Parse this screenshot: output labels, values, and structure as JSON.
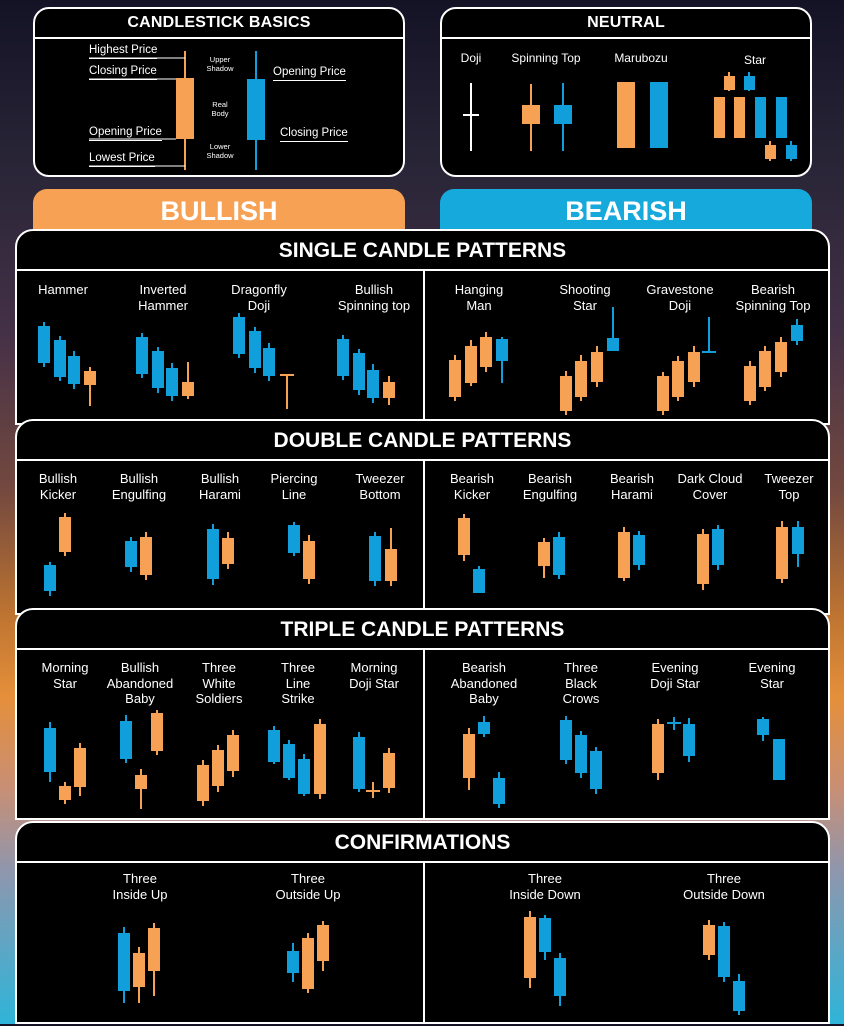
{
  "colors": {
    "bull": "#f7a154",
    "bear": "#119fdc",
    "background": "#000000",
    "border": "#ffffff"
  },
  "basics": {
    "title": "CANDLESTICK BASICS",
    "highest_price": "Highest Price",
    "closing_price_left": "Closing Price",
    "opening_price_left": "Opening Price",
    "lowest_price": "Lowest Price",
    "upper_shadow": "Upper\nShadow",
    "real_body": "Real\nBody",
    "lower_shadow": "Lower\nShadow",
    "opening_price_right": "Opening Price",
    "closing_price_right": "Closing Price"
  },
  "neutral": {
    "title": "NEUTRAL",
    "items": [
      {
        "label": "Doji"
      },
      {
        "label": "Spinning Top"
      },
      {
        "label": "Marubozu"
      },
      {
        "label": "Star"
      }
    ]
  },
  "banners": {
    "bullish": "BULLISH",
    "bearish": "BEARISH"
  },
  "single": {
    "title": "SINGLE CANDLE PATTERNS",
    "bullish": [
      {
        "label": "Hammer"
      },
      {
        "label": "Inverted\nHammer"
      },
      {
        "label": "Dragonfly\nDoji"
      },
      {
        "label": "Bullish\nSpinning top"
      }
    ],
    "bearish": [
      {
        "label": "Hanging\nMan"
      },
      {
        "label": "Shooting\nStar"
      },
      {
        "label": "Gravestone\nDoji"
      },
      {
        "label": "Bearish\nSpinning Top"
      }
    ]
  },
  "double": {
    "title": "DOUBLE CANDLE PATTERNS",
    "bullish": [
      {
        "label": "Bullish\nKicker"
      },
      {
        "label": "Bullish\nEngulfing"
      },
      {
        "label": "Bullish\nHarami"
      },
      {
        "label": "Piercing\nLine"
      },
      {
        "label": "Tweezer\nBottom"
      }
    ],
    "bearish": [
      {
        "label": "Bearish\nKicker"
      },
      {
        "label": "Bearish\nEngulfing"
      },
      {
        "label": "Bearish\nHarami"
      },
      {
        "label": "Dark Cloud\nCover"
      },
      {
        "label": "Tweezer\nTop"
      }
    ]
  },
  "triple": {
    "title": "TRIPLE CANDLE PATTERNS",
    "bullish": [
      {
        "label": "Morning\nStar"
      },
      {
        "label": "Bullish\nAbandoned\nBaby"
      },
      {
        "label": "Three\nWhite\nSoldiers"
      },
      {
        "label": "Three\nLine\nStrike"
      },
      {
        "label": "Morning\nDoji Star"
      }
    ],
    "bearish": [
      {
        "label": "Bearish\nAbandoned\nBaby"
      },
      {
        "label": "Three\nBlack\nCrows"
      },
      {
        "label": "Evening\nDoji Star"
      },
      {
        "label": "Evening\nStar"
      }
    ]
  },
  "confirmations": {
    "title": "CONFIRMATIONS",
    "bullish": [
      {
        "label": "Three\nInside Up"
      },
      {
        "label": "Three\nOutside Up"
      }
    ],
    "bearish": [
      {
        "label": "Three\nInside Down"
      },
      {
        "label": "Three\nOutside Down"
      }
    ]
  }
}
